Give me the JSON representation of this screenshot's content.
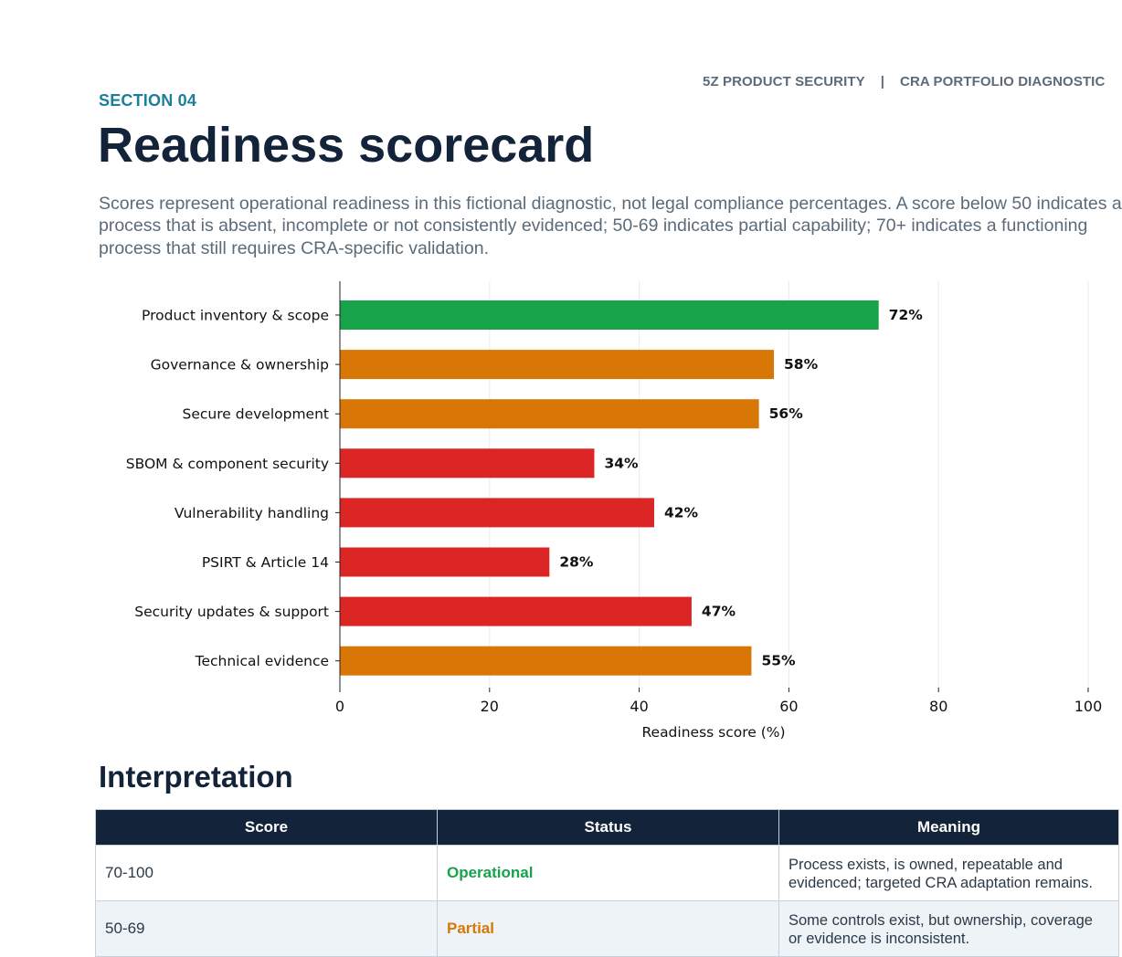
{
  "header": {
    "brand": "5Z PRODUCT SECURITY",
    "separator": "|",
    "report": "CRA PORTFOLIO DIAGNOSTIC"
  },
  "section": {
    "eyebrow": "SECTION 04",
    "title": "Readiness scorecard",
    "intro": "Scores represent operational readiness in this fictional diagnostic, not legal compliance percentages. A score below 50 indicates a process that is absent, incomplete or not consistently evidenced; 50-69 indicates partial capability; 70+ indicates a functioning process that still requires CRA-specific validation."
  },
  "chart_data": {
    "type": "bar",
    "orientation": "horizontal",
    "categories": [
      "Product inventory & scope",
      "Governance & ownership",
      "Secure development",
      "SBOM & component security",
      "Vulnerability handling",
      "PSIRT & Article 14",
      "Security updates & support",
      "Technical evidence"
    ],
    "values": [
      72,
      58,
      56,
      34,
      42,
      28,
      47,
      55
    ],
    "value_labels": [
      "72%",
      "58%",
      "56%",
      "34%",
      "42%",
      "28%",
      "47%",
      "55%"
    ],
    "bar_colors": [
      "#16a34a",
      "#d97706",
      "#d97706",
      "#dc2626",
      "#dc2626",
      "#dc2626",
      "#dc2626",
      "#d97706"
    ],
    "xlabel": "Readiness score (%)",
    "xlim": [
      0,
      100
    ],
    "xticks": [
      0,
      20,
      40,
      60,
      80,
      100
    ],
    "grid": "vertical",
    "legend": "none"
  },
  "interpretation": {
    "title": "Interpretation",
    "columns": [
      "Score",
      "Status",
      "Meaning"
    ],
    "rows": [
      {
        "score": "70-100",
        "status": "Operational",
        "status_color": "#16a34a",
        "meaning": "Process exists, is owned, repeatable and evidenced; targeted CRA adaptation remains."
      },
      {
        "score": "50-69",
        "status": "Partial",
        "status_color": "#d97706",
        "meaning": "Some controls exist, but ownership, coverage or evidence is inconsistent."
      }
    ]
  }
}
